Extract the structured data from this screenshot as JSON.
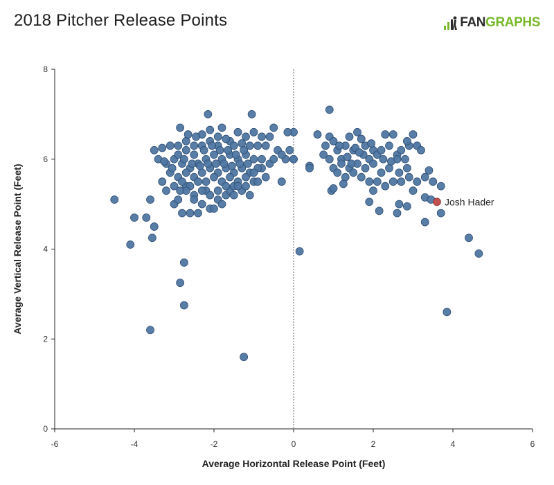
{
  "header": {
    "title": "2018 Pitcher Release Points",
    "brand_prefix": "FAN",
    "brand_suffix": "GRAPHS",
    "brand_icon": "fangraphs-logo-icon"
  },
  "colors": {
    "point": "#4f77a3",
    "point_stroke": "#2f4f73",
    "highlight": "#c0504d",
    "axis": "#222222",
    "zero_line": "#666666",
    "brand_green": "#77b82a"
  },
  "chart_data": {
    "type": "scatter",
    "title": "2018 Pitcher Release Points",
    "xlabel": "Average Horizontal Release Point (Feet)",
    "ylabel": "Average Vertical Release Point (Feet)",
    "xlim": [
      -6,
      6
    ],
    "ylim": [
      0,
      8
    ],
    "xticks": [
      -6,
      -4,
      -2,
      0,
      2,
      4,
      6
    ],
    "yticks": [
      0,
      2,
      4,
      6,
      8
    ],
    "grid": false,
    "reference_line": {
      "x": 0,
      "style": "dotted"
    },
    "highlight": {
      "label": "Josh Hader",
      "x": 3.6,
      "y": 5.05
    },
    "points": [
      [
        -4.5,
        5.1
      ],
      [
        -4.1,
        4.1
      ],
      [
        -4.0,
        4.7
      ],
      [
        -3.7,
        4.7
      ],
      [
        -3.6,
        5.1
      ],
      [
        -3.55,
        4.25
      ],
      [
        -3.5,
        4.5
      ],
      [
        -3.6,
        2.2
      ],
      [
        -2.85,
        3.25
      ],
      [
        -2.75,
        3.7
      ],
      [
        -2.75,
        2.75
      ],
      [
        -1.25,
        1.6
      ],
      [
        -3.5,
        6.2
      ],
      [
        -3.4,
        6.0
      ],
      [
        -3.3,
        6.25
      ],
      [
        -3.2,
        5.9
      ],
      [
        -3.1,
        6.3
      ],
      [
        -3.0,
        6.0
      ],
      [
        -2.9,
        6.3
      ],
      [
        -2.85,
        6.7
      ],
      [
        -3.3,
        5.5
      ],
      [
        -3.2,
        5.3
      ],
      [
        -3.1,
        5.7
      ],
      [
        -3.0,
        5.0
      ],
      [
        -2.9,
        5.1
      ],
      [
        -2.8,
        4.8
      ],
      [
        -2.7,
        5.4
      ],
      [
        -2.6,
        4.8
      ],
      [
        -2.5,
        5.2
      ],
      [
        -2.4,
        4.8
      ],
      [
        -2.3,
        5.0
      ],
      [
        -2.2,
        5.3
      ],
      [
        -2.1,
        4.9
      ],
      [
        -2.0,
        4.9
      ],
      [
        -1.9,
        5.1
      ],
      [
        -1.8,
        5.0
      ],
      [
        -1.7,
        5.2
      ],
      [
        -1.6,
        5.3
      ],
      [
        -1.5,
        5.4
      ],
      [
        -1.4,
        5.5
      ],
      [
        -1.3,
        5.3
      ],
      [
        -1.2,
        5.4
      ],
      [
        -1.1,
        5.2
      ],
      [
        -1.0,
        5.5
      ],
      [
        -0.9,
        5.5
      ],
      [
        -0.8,
        5.8
      ],
      [
        -0.7,
        5.6
      ],
      [
        -0.6,
        5.9
      ],
      [
        -0.5,
        6.0
      ],
      [
        -0.4,
        6.2
      ],
      [
        -0.3,
        5.5
      ],
      [
        -0.2,
        6.0
      ],
      [
        -0.1,
        6.2
      ],
      [
        0.0,
        6.0
      ],
      [
        0.0,
        6.6
      ],
      [
        -0.15,
        6.6
      ],
      [
        -0.5,
        6.7
      ],
      [
        -1.05,
        7.0
      ],
      [
        -2.15,
        7.0
      ],
      [
        -2.7,
        6.4
      ],
      [
        -2.5,
        6.3
      ],
      [
        -2.3,
        6.55
      ],
      [
        -2.1,
        6.65
      ],
      [
        -1.9,
        6.5
      ],
      [
        -1.8,
        6.7
      ],
      [
        -1.6,
        6.4
      ],
      [
        -1.4,
        6.6
      ],
      [
        -1.2,
        6.5
      ],
      [
        -1.0,
        6.6
      ],
      [
        -0.8,
        6.5
      ],
      [
        -0.7,
        6.3
      ],
      [
        -0.6,
        6.5
      ],
      [
        -0.9,
        6.3
      ],
      [
        -1.1,
        6.3
      ],
      [
        -1.3,
        6.35
      ],
      [
        -1.5,
        6.3
      ],
      [
        -1.7,
        6.45
      ],
      [
        -1.9,
        6.3
      ],
      [
        -2.1,
        6.4
      ],
      [
        -2.3,
        6.3
      ],
      [
        -2.5,
        6.1
      ],
      [
        -2.7,
        6.2
      ],
      [
        -2.9,
        6.1
      ],
      [
        -2.8,
        5.9
      ],
      [
        -2.6,
        5.8
      ],
      [
        -2.4,
        5.9
      ],
      [
        -2.2,
        6.0
      ],
      [
        -2.0,
        6.1
      ],
      [
        -1.8,
        6.0
      ],
      [
        -1.6,
        6.1
      ],
      [
        -1.4,
        6.0
      ],
      [
        -1.2,
        6.1
      ],
      [
        -1.0,
        6.0
      ],
      [
        -0.8,
        6.0
      ],
      [
        -0.9,
        5.8
      ],
      [
        -1.1,
        5.7
      ],
      [
        -1.3,
        5.8
      ],
      [
        -1.5,
        5.7
      ],
      [
        -1.7,
        5.8
      ],
      [
        -1.9,
        5.7
      ],
      [
        -2.1,
        5.8
      ],
      [
        -2.3,
        5.7
      ],
      [
        -2.5,
        5.6
      ],
      [
        -2.7,
        5.7
      ],
      [
        -2.9,
        5.6
      ],
      [
        -3.0,
        5.4
      ],
      [
        -2.8,
        5.5
      ],
      [
        -2.6,
        5.4
      ],
      [
        -2.4,
        5.5
      ],
      [
        -2.2,
        5.5
      ],
      [
        -2.0,
        5.6
      ],
      [
        -1.8,
        5.5
      ],
      [
        -1.6,
        5.6
      ],
      [
        -1.4,
        5.4
      ],
      [
        -1.2,
        5.6
      ],
      [
        -1.0,
        5.7
      ],
      [
        -1.9,
        5.3
      ],
      [
        -2.1,
        5.2
      ],
      [
        -2.3,
        5.3
      ],
      [
        -2.5,
        5.1
      ],
      [
        -2.7,
        5.3
      ],
      [
        -1.7,
        5.4
      ],
      [
        -1.5,
        5.2
      ],
      [
        -2.45,
        6.5
      ],
      [
        -2.25,
        6.2
      ],
      [
        -2.05,
        6.3
      ],
      [
        -1.85,
        6.2
      ],
      [
        -1.65,
        6.2
      ],
      [
        -1.45,
        6.1
      ],
      [
        -1.25,
        6.2
      ],
      [
        -2.35,
        5.85
      ],
      [
        -2.15,
        5.9
      ],
      [
        -1.95,
        5.9
      ],
      [
        -1.75,
        5.9
      ],
      [
        -1.55,
        5.85
      ],
      [
        -1.35,
        5.9
      ],
      [
        -1.15,
        5.9
      ],
      [
        -2.55,
        5.9
      ],
      [
        -2.75,
        6.0
      ],
      [
        -3.05,
        5.8
      ],
      [
        -3.25,
        5.95
      ],
      [
        -2.65,
        6.55
      ],
      [
        -2.85,
        5.3
      ],
      [
        -0.3,
        6.1
      ],
      [
        0.0,
        6.0
      ],
      [
        0.15,
        3.95
      ],
      [
        0.4,
        5.85
      ],
      [
        0.4,
        5.8
      ],
      [
        0.6,
        6.55
      ],
      [
        0.9,
        7.1
      ],
      [
        0.95,
        5.3
      ],
      [
        1.0,
        5.35
      ],
      [
        0.75,
        6.1
      ],
      [
        0.8,
        6.3
      ],
      [
        0.9,
        6.5
      ],
      [
        1.0,
        6.4
      ],
      [
        1.1,
        6.2
      ],
      [
        1.2,
        6.0
      ],
      [
        1.3,
        6.3
      ],
      [
        1.4,
        6.5
      ],
      [
        1.5,
        6.2
      ],
      [
        1.6,
        6.6
      ],
      [
        1.7,
        6.45
      ],
      [
        1.8,
        6.3
      ],
      [
        1.9,
        6.0
      ],
      [
        2.0,
        6.2
      ],
      [
        2.1,
        6.1
      ],
      [
        2.2,
        6.2
      ],
      [
        2.3,
        6.55
      ],
      [
        2.4,
        6.3
      ],
      [
        2.5,
        6.55
      ],
      [
        2.6,
        6.1
      ],
      [
        2.7,
        6.2
      ],
      [
        2.8,
        6.0
      ],
      [
        2.9,
        6.3
      ],
      [
        3.0,
        6.55
      ],
      [
        3.1,
        6.3
      ],
      [
        3.2,
        6.2
      ],
      [
        2.85,
        6.4
      ],
      [
        2.6,
        6.0
      ],
      [
        2.4,
        5.8
      ],
      [
        2.2,
        5.7
      ],
      [
        2.0,
        5.9
      ],
      [
        1.8,
        5.8
      ],
      [
        1.6,
        5.9
      ],
      [
        1.4,
        5.8
      ],
      [
        1.2,
        5.9
      ],
      [
        1.0,
        5.8
      ],
      [
        0.9,
        6.0
      ],
      [
        1.1,
        5.7
      ],
      [
        1.3,
        5.6
      ],
      [
        1.5,
        5.7
      ],
      [
        1.7,
        5.6
      ],
      [
        1.9,
        5.5
      ],
      [
        2.1,
        5.5
      ],
      [
        2.3,
        5.4
      ],
      [
        2.5,
        5.5
      ],
      [
        2.7,
        5.5
      ],
      [
        2.9,
        5.6
      ],
      [
        3.1,
        5.5
      ],
      [
        3.3,
        5.6
      ],
      [
        3.4,
        5.75
      ],
      [
        3.5,
        5.5
      ],
      [
        3.7,
        5.4
      ],
      [
        3.0,
        5.3
      ],
      [
        2.0,
        5.3
      ],
      [
        1.9,
        5.05
      ],
      [
        2.15,
        4.85
      ],
      [
        2.65,
        5.0
      ],
      [
        2.6,
        4.8
      ],
      [
        2.85,
        4.95
      ],
      [
        3.3,
        5.15
      ],
      [
        3.45,
        5.1
      ],
      [
        3.3,
        4.6
      ],
      [
        3.7,
        4.8
      ],
      [
        4.4,
        4.25
      ],
      [
        4.65,
        3.9
      ],
      [
        3.85,
        2.6
      ],
      [
        1.55,
        6.25
      ],
      [
        1.75,
        6.1
      ],
      [
        1.95,
        6.35
      ],
      [
        2.25,
        6.0
      ],
      [
        2.45,
        5.95
      ],
      [
        2.65,
        5.7
      ],
      [
        2.85,
        5.8
      ],
      [
        1.35,
        6.05
      ],
      [
        1.15,
        6.3
      ],
      [
        1.25,
        5.45
      ],
      [
        1.45,
        5.9
      ],
      [
        1.65,
        6.15
      ]
    ]
  }
}
